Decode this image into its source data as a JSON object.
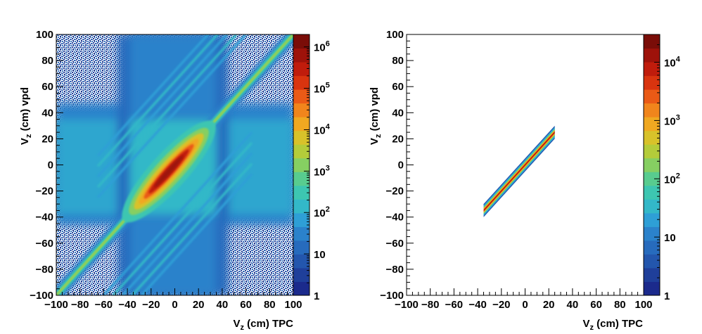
{
  "chart_data": [
    {
      "type": "heatmap",
      "xlabel_main": "V",
      "xlabel_sub": "z",
      "xlabel_rest": " (cm) TPC",
      "ylabel_main": "V",
      "ylabel_sub": "z",
      "ylabel_rest": " (cm) vpd",
      "xlim": [
        -100,
        100
      ],
      "ylim": [
        -100,
        100
      ],
      "xticks": [
        -100,
        -80,
        -60,
        -40,
        -20,
        0,
        20,
        40,
        60,
        80,
        100
      ],
      "yticks": [
        -100,
        -80,
        -60,
        -40,
        -20,
        0,
        20,
        40,
        60,
        80,
        100
      ],
      "colorbar": {
        "scale": "log",
        "range": [
          1,
          2000000
        ],
        "tick_labels": [
          {
            "value": 1,
            "base": "1",
            "exp": ""
          },
          {
            "value": 10,
            "base": "10",
            "exp": ""
          },
          {
            "value": 100,
            "base": "10",
            "exp": "2"
          },
          {
            "value": 1000,
            "base": "10",
            "exp": "3"
          },
          {
            "value": 10000,
            "base": "10",
            "exp": "4"
          },
          {
            "value": 100000,
            "base": "10",
            "exp": "5"
          },
          {
            "value": 1000000,
            "base": "10",
            "exp": "6"
          }
        ]
      },
      "features": {
        "diagonal": "Vz vpd = Vz TPC, peak near (0,0)",
        "horizontal_band_y": [
          -38,
          35
        ],
        "vertical_band_x": [
          -38,
          35
        ],
        "satellite_stripes_upper": 5,
        "satellite_stripes_lower": 5
      }
    },
    {
      "type": "heatmap",
      "xlabel_main": "V",
      "xlabel_sub": "z",
      "xlabel_rest": " (cm) TPC",
      "ylabel_main": "V",
      "ylabel_sub": "z",
      "ylabel_rest": " (cm) vpd",
      "xlim": [
        -100,
        100
      ],
      "ylim": [
        -100,
        100
      ],
      "xticks": [
        -100,
        -80,
        -60,
        -40,
        -20,
        0,
        20,
        40,
        60,
        80,
        100
      ],
      "yticks": [
        -100,
        -80,
        -60,
        -40,
        -20,
        0,
        20,
        40,
        60,
        80,
        100
      ],
      "colorbar": {
        "scale": "log",
        "range": [
          1,
          30000
        ],
        "tick_labels": [
          {
            "value": 1,
            "base": "1",
            "exp": ""
          },
          {
            "value": 10,
            "base": "10",
            "exp": ""
          },
          {
            "value": 100,
            "base": "10",
            "exp": "2"
          },
          {
            "value": 1000,
            "base": "10",
            "exp": "3"
          },
          {
            "value": 10000,
            "base": "10",
            "exp": "4"
          }
        ]
      },
      "features": {
        "selected_band_x": [
          -35,
          25
        ],
        "band_half_width_cm": 5
      }
    }
  ]
}
